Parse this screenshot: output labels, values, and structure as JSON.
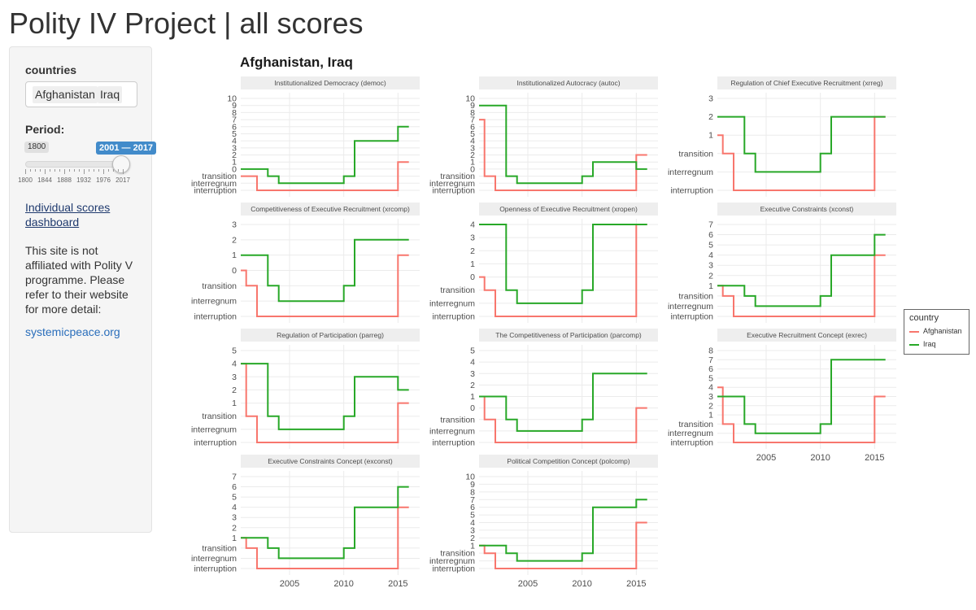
{
  "page": {
    "title": "Polity IV Project | all scores"
  },
  "sidebar": {
    "countries_label": "countries",
    "countries": [
      "Afghanistan",
      "Iraq"
    ],
    "period_label": "Period:",
    "slider": {
      "min_label": "1800",
      "selected_label": "2001 — 2017",
      "grid_labels": [
        "1800",
        "1844",
        "1888",
        "1932",
        "1976",
        "2017"
      ],
      "min": 1800,
      "max": 2017,
      "from": 2001,
      "to": 2017
    },
    "link_label": "Individual scores dashboard",
    "note": "This site is not affiliated with Polity V programme. Please refer to their website for more detail:",
    "site_link": "systemicpeace.org"
  },
  "chart_title": "Afghanistan, Iraq",
  "legend": {
    "title": "country",
    "items": [
      {
        "name": "Afghanistan",
        "color": "#f8766d"
      },
      {
        "name": "Iraq",
        "color": "#28a828"
      }
    ]
  },
  "colors": {
    "afghanistan": "#f8766d",
    "iraq": "#28a828",
    "strip": "#eeeeee",
    "grid": "#ebebeb"
  },
  "chart_data": [
    {
      "type": "line",
      "title": "Institutionalized Democracy (democ)",
      "xlim": [
        2000.5,
        2017
      ],
      "x_ticks": [],
      "ylim": [
        -88,
        10
      ],
      "y_ticks": [
        -88,
        -77,
        -66,
        0,
        1,
        2,
        3,
        4,
        5,
        6,
        7,
        8,
        9,
        10
      ],
      "y_tick_labels": [
        "interruption",
        "interregnum",
        "transition",
        "0",
        "1",
        "2",
        "3",
        "4",
        "5",
        "6",
        "7",
        "8",
        "9",
        "10"
      ],
      "series": [
        {
          "name": "Afghanistan",
          "x": [
            2000.5,
            2001,
            2002,
            2015,
            2016
          ],
          "y": [
            -66,
            -66,
            -88,
            1,
            1
          ]
        },
        {
          "name": "Iraq",
          "x": [
            2000.5,
            2003,
            2004,
            2010,
            2011,
            2015,
            2016
          ],
          "y": [
            0,
            -66,
            -77,
            -66,
            4,
            6,
            6
          ]
        }
      ]
    },
    {
      "type": "line",
      "title": "Institutionalized Autocracy (autoc)",
      "xlim": [
        2000.5,
        2017
      ],
      "x_ticks": [],
      "ylim": [
        -88,
        10
      ],
      "y_ticks": [
        -88,
        -77,
        -66,
        0,
        1,
        2,
        3,
        4,
        5,
        6,
        7,
        8,
        9,
        10
      ],
      "y_tick_labels": [
        "interruption",
        "interregnum",
        "transition",
        "0",
        "1",
        "2",
        "3",
        "4",
        "5",
        "6",
        "7",
        "8",
        "9",
        "10"
      ],
      "series": [
        {
          "name": "Afghanistan",
          "x": [
            2000.5,
            2001,
            2002,
            2015,
            2016
          ],
          "y": [
            7,
            -66,
            -88,
            2,
            2
          ]
        },
        {
          "name": "Iraq",
          "x": [
            2000.5,
            2003,
            2004,
            2010,
            2011,
            2015,
            2016
          ],
          "y": [
            9,
            -66,
            -77,
            -66,
            1,
            0,
            0
          ]
        }
      ]
    },
    {
      "type": "line",
      "title": "Regulation of Chief Executive Recruitment (xrreg)",
      "xlim": [
        2000.5,
        2017
      ],
      "x_ticks": [],
      "ylim": [
        -88,
        3
      ],
      "y_ticks": [
        -88,
        -77,
        -66,
        1,
        2,
        3
      ],
      "y_tick_labels": [
        "interruption",
        "interregnum",
        "transition",
        "1",
        "2",
        "3"
      ],
      "series": [
        {
          "name": "Afghanistan",
          "x": [
            2000.5,
            2001,
            2002,
            2015,
            2016
          ],
          "y": [
            1,
            -66,
            -88,
            2,
            2
          ]
        },
        {
          "name": "Iraq",
          "x": [
            2000.5,
            2003,
            2004,
            2010,
            2011,
            2015,
            2016
          ],
          "y": [
            2,
            -66,
            -77,
            -66,
            2,
            2,
            2
          ]
        }
      ]
    },
    {
      "type": "line",
      "title": "Competitiveness of Executive Recruitment (xrcomp)",
      "xlim": [
        2000.5,
        2017
      ],
      "x_ticks": [],
      "ylim": [
        -88,
        3
      ],
      "y_ticks": [
        -88,
        -77,
        -66,
        0,
        1,
        2,
        3
      ],
      "y_tick_labels": [
        "interruption",
        "interregnum",
        "transition",
        "0",
        "1",
        "2",
        "3"
      ],
      "series": [
        {
          "name": "Afghanistan",
          "x": [
            2000.5,
            2001,
            2002,
            2015,
            2016
          ],
          "y": [
            0,
            -66,
            -88,
            1,
            1
          ]
        },
        {
          "name": "Iraq",
          "x": [
            2000.5,
            2003,
            2004,
            2010,
            2011,
            2015,
            2016
          ],
          "y": [
            1,
            -66,
            -77,
            -66,
            2,
            2,
            2
          ]
        }
      ]
    },
    {
      "type": "line",
      "title": "Openness of Executive Recruitment (xropen)",
      "xlim": [
        2000.5,
        2017
      ],
      "x_ticks": [],
      "ylim": [
        -88,
        4
      ],
      "y_ticks": [
        -88,
        -77,
        -66,
        0,
        1,
        2,
        3,
        4
      ],
      "y_tick_labels": [
        "interruption",
        "interregnum",
        "transition",
        "0",
        "1",
        "2",
        "3",
        "4"
      ],
      "series": [
        {
          "name": "Afghanistan",
          "x": [
            2000.5,
            2001,
            2002,
            2015,
            2016
          ],
          "y": [
            0,
            -66,
            -88,
            4,
            4
          ]
        },
        {
          "name": "Iraq",
          "x": [
            2000.5,
            2003,
            2004,
            2010,
            2011,
            2015,
            2016
          ],
          "y": [
            4,
            -66,
            -77,
            -66,
            4,
            4,
            4
          ]
        }
      ]
    },
    {
      "type": "line",
      "title": "Executive Constraints (xconst)",
      "xlim": [
        2000.5,
        2017
      ],
      "x_ticks": [],
      "ylim": [
        -88,
        7
      ],
      "y_ticks": [
        -88,
        -77,
        -66,
        1,
        2,
        3,
        4,
        5,
        6,
        7
      ],
      "y_tick_labels": [
        "interruption",
        "interregnum",
        "transition",
        "1",
        "2",
        "3",
        "4",
        "5",
        "6",
        "7"
      ],
      "series": [
        {
          "name": "Afghanistan",
          "x": [
            2000.5,
            2001,
            2002,
            2015,
            2016
          ],
          "y": [
            1,
            -66,
            -88,
            4,
            4
          ]
        },
        {
          "name": "Iraq",
          "x": [
            2000.5,
            2003,
            2004,
            2010,
            2011,
            2015,
            2016
          ],
          "y": [
            1,
            -66,
            -77,
            -66,
            4,
            6,
            6
          ]
        }
      ]
    },
    {
      "type": "line",
      "title": "Regulation of Participation (parreg)",
      "xlim": [
        2000.5,
        2017
      ],
      "x_ticks": [],
      "ylim": [
        -88,
        5
      ],
      "y_ticks": [
        -88,
        -77,
        -66,
        1,
        2,
        3,
        4,
        5
      ],
      "y_tick_labels": [
        "interruption",
        "interregnum",
        "transition",
        "1",
        "2",
        "3",
        "4",
        "5"
      ],
      "series": [
        {
          "name": "Afghanistan",
          "x": [
            2000.5,
            2001,
            2002,
            2015,
            2016
          ],
          "y": [
            4,
            -66,
            -88,
            1,
            1
          ]
        },
        {
          "name": "Iraq",
          "x": [
            2000.5,
            2003,
            2004,
            2010,
            2011,
            2015,
            2016
          ],
          "y": [
            4,
            -66,
            -77,
            -66,
            3,
            2,
            2
          ]
        }
      ]
    },
    {
      "type": "line",
      "title": "The Competitiveness of Participation (parcomp)",
      "xlim": [
        2000.5,
        2017
      ],
      "x_ticks": [],
      "ylim": [
        -88,
        5
      ],
      "y_ticks": [
        -88,
        -77,
        -66,
        0,
        1,
        2,
        3,
        4,
        5
      ],
      "y_tick_labels": [
        "interruption",
        "interregnum",
        "transition",
        "0",
        "1",
        "2",
        "3",
        "4",
        "5"
      ],
      "series": [
        {
          "name": "Afghanistan",
          "x": [
            2000.5,
            2001,
            2002,
            2015,
            2016
          ],
          "y": [
            1,
            -66,
            -88,
            0,
            0
          ]
        },
        {
          "name": "Iraq",
          "x": [
            2000.5,
            2003,
            2004,
            2010,
            2011,
            2016
          ],
          "y": [
            1,
            -66,
            -77,
            -66,
            3,
            3
          ]
        }
      ]
    },
    {
      "type": "line",
      "title": "Executive Recruitment Concept (exrec)",
      "xlim": [
        2000.5,
        2017
      ],
      "x_ticks": [
        2005,
        2010,
        2015
      ],
      "ylim": [
        -88,
        8
      ],
      "y_ticks": [
        -88,
        -77,
        -66,
        1,
        2,
        3,
        4,
        5,
        6,
        7,
        8
      ],
      "y_tick_labels": [
        "interruption",
        "interregnum",
        "transition",
        "1",
        "2",
        "3",
        "4",
        "5",
        "6",
        "7",
        "8"
      ],
      "series": [
        {
          "name": "Afghanistan",
          "x": [
            2000.5,
            2001,
            2002,
            2015,
            2016
          ],
          "y": [
            4,
            -66,
            -88,
            3,
            3
          ]
        },
        {
          "name": "Iraq",
          "x": [
            2000.5,
            2003,
            2004,
            2010,
            2011,
            2016
          ],
          "y": [
            3,
            -66,
            -77,
            -66,
            7,
            7
          ]
        }
      ]
    },
    {
      "type": "line",
      "title": "Executive Constraints Concept (exconst)",
      "xlim": [
        2000.5,
        2017
      ],
      "x_ticks": [
        2005,
        2010,
        2015
      ],
      "ylim": [
        -88,
        7
      ],
      "y_ticks": [
        -88,
        -77,
        -66,
        1,
        2,
        3,
        4,
        5,
        6,
        7
      ],
      "y_tick_labels": [
        "interruption",
        "interregnum",
        "transition",
        "1",
        "2",
        "3",
        "4",
        "5",
        "6",
        "7"
      ],
      "series": [
        {
          "name": "Afghanistan",
          "x": [
            2000.5,
            2001,
            2002,
            2015,
            2016
          ],
          "y": [
            1,
            -66,
            -88,
            4,
            4
          ]
        },
        {
          "name": "Iraq",
          "x": [
            2000.5,
            2003,
            2004,
            2010,
            2011,
            2015,
            2016
          ],
          "y": [
            1,
            -66,
            -77,
            -66,
            4,
            6,
            6
          ]
        }
      ]
    },
    {
      "type": "line",
      "title": "Political Competition Concept (polcomp)",
      "xlim": [
        2000.5,
        2017
      ],
      "x_ticks": [
        2005,
        2010,
        2015
      ],
      "ylim": [
        -88,
        10
      ],
      "y_ticks": [
        -88,
        -77,
        -66,
        1,
        2,
        3,
        4,
        5,
        6,
        7,
        8,
        9,
        10
      ],
      "y_tick_labels": [
        "interruption",
        "interregnum",
        "transition",
        "1",
        "2",
        "3",
        "4",
        "5",
        "6",
        "7",
        "8",
        "9",
        "10"
      ],
      "series": [
        {
          "name": "Afghanistan",
          "x": [
            2000.5,
            2001,
            2002,
            2015,
            2016
          ],
          "y": [
            1,
            -66,
            -88,
            4,
            4
          ]
        },
        {
          "name": "Iraq",
          "x": [
            2000.5,
            2003,
            2004,
            2010,
            2011,
            2015,
            2016
          ],
          "y": [
            1,
            -66,
            -77,
            -66,
            6,
            7,
            7
          ]
        }
      ]
    }
  ]
}
